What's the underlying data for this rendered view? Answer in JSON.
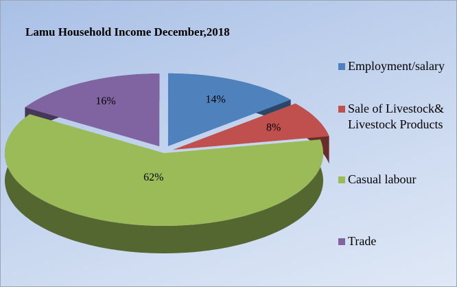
{
  "chart_data": {
    "type": "pie",
    "title": "Lamu Household Income December,2018",
    "categories": [
      "Employment/salary",
      "Sale of Livestock&Livestock Products",
      "Casual labour",
      "Trade"
    ],
    "values": [
      14,
      8,
      62,
      16
    ],
    "value_labels": [
      "14%",
      "8%",
      "62%",
      "16%"
    ],
    "colors": [
      "#4f81bd",
      "#c0504d",
      "#9bbb59",
      "#8064a2"
    ],
    "legend": "right"
  }
}
